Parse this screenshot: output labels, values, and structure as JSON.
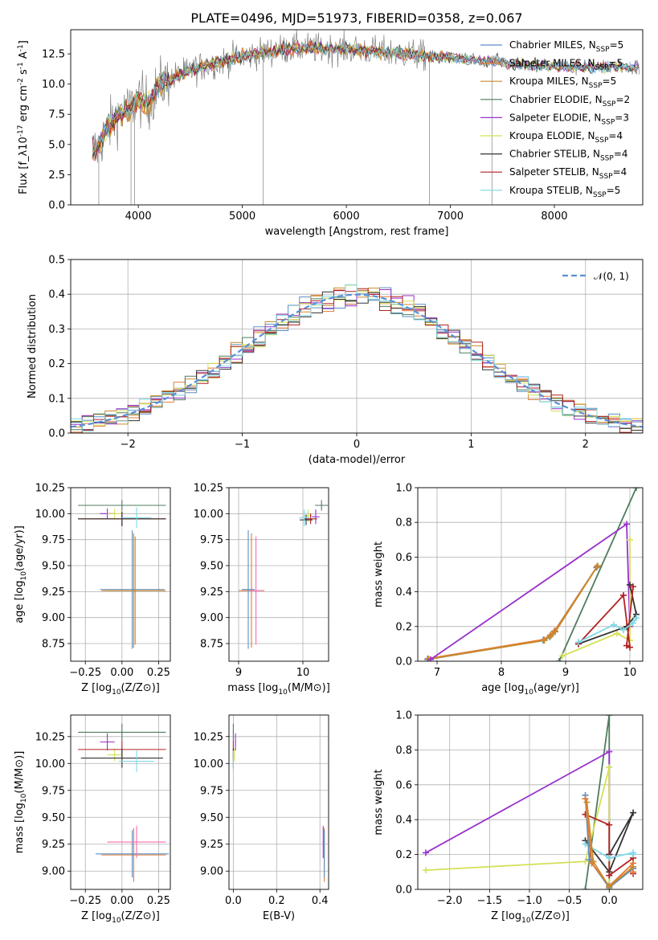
{
  "chart_data": [
    {
      "id": "spectrum",
      "type": "line",
      "title": "PLATE=0496, MJD=51973, FIBERID=0358, z=0.067",
      "xlabel": "wavelength [Angstrom, rest frame]",
      "ylabel": "Flux [f_λ10^{-17} erg cm^{-2} s^{-1} A^{-1}]",
      "xlim": [
        3350,
        8850
      ],
      "ylim": [
        0,
        14.5
      ],
      "xticks": [
        4000,
        5000,
        6000,
        7000,
        8000
      ],
      "yticks": [
        0.0,
        2.5,
        5.0,
        7.5,
        10.0,
        12.5
      ],
      "grid": false,
      "legend_placement": "right",
      "series": [
        {
          "name": "Chabrier MILES, N_SSP=5",
          "color": "#5a8fc2"
        },
        {
          "name": "Salpeter MILES, N_SSP=5",
          "color": "#e07b39"
        },
        {
          "name": "Kroupa MILES, N_SSP=5",
          "color": "#c98a2a"
        },
        {
          "name": "Chabrier ELODIE, N_SSP=2",
          "color": "#4f7c5e"
        },
        {
          "name": "Salpeter ELODIE, N_SSP=3",
          "color": "#9932cc"
        },
        {
          "name": "Kroupa ELODIE, N_SSP=4",
          "color": "#d4e157"
        },
        {
          "name": "Chabrier STELIB, N_SSP=4",
          "color": "#333333"
        },
        {
          "name": "Salpeter STELIB, N_SSP=4",
          "color": "#b22222"
        },
        {
          "name": "Kroupa STELIB, N_SSP=5",
          "color": "#7fd8e8"
        }
      ],
      "continuum": {
        "x": [
          3600,
          3700,
          3800,
          3900,
          4000,
          4100,
          4200,
          4400,
          4600,
          4800,
          5000,
          5200,
          5400,
          5600,
          5800,
          6000,
          6200,
          6400,
          6600,
          6800,
          7000,
          7200,
          7400,
          7600,
          7800,
          8000,
          8200,
          8400,
          8600
        ],
        "y": [
          4.6,
          6.2,
          7.4,
          7.8,
          8.8,
          8.4,
          9.9,
          10.8,
          11.4,
          11.9,
          12.3,
          12.6,
          12.9,
          13.0,
          12.9,
          12.9,
          12.8,
          12.6,
          12.5,
          12.3,
          12.2,
          12.0,
          11.9,
          11.7,
          11.5,
          11.5,
          11.4,
          11.4,
          11.4
        ]
      }
    },
    {
      "id": "residuals",
      "type": "histogram",
      "xlabel": "(data-model)/error",
      "ylabel": "Normed distribution",
      "xlim": [
        -2.5,
        2.5
      ],
      "ylim": [
        0,
        0.5
      ],
      "xticks": [
        -2,
        -1,
        0,
        1,
        2
      ],
      "yticks": [
        0.0,
        0.1,
        0.2,
        0.3,
        0.4,
        0.5
      ],
      "grid": true,
      "legend": [
        {
          "name": "𝒩(0, 1)",
          "color": "#5b8ed6",
          "style": "dashed"
        }
      ],
      "legend_placement": "top-right"
    },
    {
      "id": "z-age",
      "type": "errorbar",
      "xlabel": "Z [log10(Z/Z⊙)]",
      "ylabel": "age  [log10(age/yr)]",
      "xlim": [
        -0.35,
        0.33
      ],
      "ylim": [
        8.58,
        10.25
      ],
      "xticks": [
        -0.25,
        0.0,
        0.25
      ],
      "yticks": [
        8.75,
        9.0,
        9.25,
        9.5,
        9.75,
        10.0,
        10.25
      ],
      "grid": true,
      "points": [
        {
          "x": 0.0,
          "y": 10.08,
          "xerr": 0.3,
          "yerr": 0.05,
          "color": "#4f7c5e"
        },
        {
          "x": -0.1,
          "y": 10.0,
          "xerr": 0.05,
          "yerr": 0.05,
          "color": "#9932cc"
        },
        {
          "x": -0.05,
          "y": 10.0,
          "xerr": 0.05,
          "yerr": 0.05,
          "color": "#d4e157"
        },
        {
          "x": 0.0,
          "y": 9.95,
          "xerr": 0.3,
          "yerr": 0.07,
          "color": "#b22222"
        },
        {
          "x": 0.0,
          "y": 9.95,
          "xerr": 0.3,
          "yerr": 0.07,
          "color": "#333333"
        },
        {
          "x": 0.1,
          "y": 9.96,
          "xerr": 0.1,
          "yerr": 0.1,
          "color": "#7fd8e8"
        },
        {
          "x": 0.08,
          "y": 9.26,
          "xerr": 0.22,
          "yerr": 0.55,
          "color": "#e07b39"
        },
        {
          "x": 0.07,
          "y": 9.27,
          "xerr": 0.22,
          "yerr": 0.57,
          "color": "#5a8fc2"
        },
        {
          "x": 0.09,
          "y": 9.26,
          "xerr": 0.2,
          "yerr": 0.52,
          "color": "#c98a2a"
        }
      ]
    },
    {
      "id": "mass-age",
      "type": "errorbar",
      "xlabel": "mass [log10(M/M⊙)]",
      "ylabel": "",
      "xlim": [
        8.85,
        10.4
      ],
      "ylim": [
        8.58,
        10.25
      ],
      "xticks": [
        9,
        10
      ],
      "yticks": [
        8.75,
        9.0,
        9.25,
        9.5,
        9.75,
        10.0,
        10.25
      ],
      "grid": true,
      "points": [
        {
          "x": 10.29,
          "y": 10.08,
          "xerr": 0.1,
          "yerr": 0.05,
          "color": "#4f7c5e"
        },
        {
          "x": 10.2,
          "y": 9.97,
          "xerr": 0.06,
          "yerr": 0.07,
          "color": "#9932cc"
        },
        {
          "x": 10.08,
          "y": 9.98,
          "xerr": 0.06,
          "yerr": 0.06,
          "color": "#d4e157"
        },
        {
          "x": 10.12,
          "y": 9.95,
          "xerr": 0.1,
          "yerr": 0.05,
          "color": "#b22222"
        },
        {
          "x": 10.05,
          "y": 9.94,
          "xerr": 0.1,
          "yerr": 0.05,
          "color": "#333333"
        },
        {
          "x": 10.02,
          "y": 9.96,
          "xerr": 0.08,
          "yerr": 0.08,
          "color": "#7fd8e8"
        },
        {
          "x": 9.2,
          "y": 9.26,
          "xerr": 0.2,
          "yerr": 0.55,
          "color": "#e07b39"
        },
        {
          "x": 9.15,
          "y": 9.27,
          "xerr": 0.1,
          "yerr": 0.57,
          "color": "#5a8fc2"
        },
        {
          "x": 9.27,
          "y": 9.26,
          "xerr": 0.1,
          "yerr": 0.52,
          "color": "#ff69b4"
        }
      ]
    },
    {
      "id": "age-weight",
      "type": "line",
      "xlabel": "age  [log10(age/yr)]",
      "ylabel": "mass weight",
      "xlim": [
        6.7,
        10.2
      ],
      "ylim": [
        0,
        1.0
      ],
      "xticks": [
        7,
        8,
        9,
        10
      ],
      "yticks": [
        0.0,
        0.2,
        0.4,
        0.6,
        0.8,
        1.0
      ],
      "grid": true,
      "series": [
        {
          "color": "#5a8fc2",
          "x": [
            6.85,
            8.65,
            8.75,
            8.82,
            9.48
          ],
          "y": [
            0.01,
            0.12,
            0.14,
            0.17,
            0.54
          ]
        },
        {
          "color": "#e07b39",
          "x": [
            6.86,
            8.66,
            8.76,
            8.83,
            9.49
          ],
          "y": [
            0.015,
            0.125,
            0.15,
            0.175,
            0.545
          ]
        },
        {
          "color": "#c98a2a",
          "x": [
            6.87,
            8.67,
            8.77,
            8.84,
            9.5
          ],
          "y": [
            0.012,
            0.12,
            0.145,
            0.17,
            0.55
          ]
        },
        {
          "color": "#4f7c5e",
          "x": [
            8.9,
            10.1
          ],
          "y": [
            0.0,
            1.0
          ]
        },
        {
          "color": "#9932cc",
          "x": [
            6.9,
            9.95,
            10.0
          ],
          "y": [
            0.01,
            0.79,
            0.2
          ]
        },
        {
          "color": "#d4e157",
          "x": [
            8.95,
            9.8,
            10.0,
            10.0
          ],
          "y": [
            0.03,
            0.16,
            0.12,
            0.7
          ]
        },
        {
          "color": "#333333",
          "x": [
            9.2,
            9.95,
            10.1,
            10.0
          ],
          "y": [
            0.1,
            0.2,
            0.27,
            0.44
          ]
        },
        {
          "color": "#b22222",
          "x": [
            9.2,
            9.9,
            10.0,
            9.95,
            10.05
          ],
          "y": [
            0.1,
            0.38,
            0.08,
            0.09,
            0.43
          ]
        },
        {
          "color": "#7fd8e8",
          "x": [
            9.2,
            9.75,
            9.9,
            10.05,
            10.1
          ],
          "y": [
            0.11,
            0.21,
            0.18,
            0.22,
            0.25
          ]
        }
      ]
    },
    {
      "id": "z-mass",
      "type": "errorbar",
      "xlabel": "Z [log10(Z/Z⊙)]",
      "ylabel": "mass [log10(M/M⊙)]",
      "xlim": [
        -0.35,
        0.33
      ],
      "ylim": [
        8.83,
        10.45
      ],
      "xticks": [
        -0.25,
        0.0,
        0.25
      ],
      "yticks": [
        9.0,
        9.25,
        9.5,
        9.75,
        10.0,
        10.25
      ],
      "grid": true,
      "points": [
        {
          "x": 0.0,
          "y": 10.29,
          "xerr": 0.3,
          "yerr": 0.08,
          "color": "#4f7c5e"
        },
        {
          "x": -0.1,
          "y": 10.2,
          "xerr": 0.05,
          "yerr": 0.08,
          "color": "#9932cc"
        },
        {
          "x": -0.05,
          "y": 10.08,
          "xerr": 0.05,
          "yerr": 0.06,
          "color": "#d4e157"
        },
        {
          "x": 0.0,
          "y": 10.13,
          "xerr": 0.3,
          "yerr": 0.08,
          "color": "#b22222"
        },
        {
          "x": 0.0,
          "y": 10.05,
          "xerr": 0.28,
          "yerr": 0.09,
          "color": "#333333"
        },
        {
          "x": 0.1,
          "y": 10.02,
          "xerr": 0.12,
          "yerr": 0.1,
          "color": "#7fd8e8"
        },
        {
          "x": 0.08,
          "y": 9.15,
          "xerr": 0.22,
          "yerr": 0.25,
          "color": "#e07b39"
        },
        {
          "x": 0.07,
          "y": 9.16,
          "xerr": 0.25,
          "yerr": 0.22,
          "color": "#5a8fc2"
        },
        {
          "x": 0.1,
          "y": 9.27,
          "xerr": 0.2,
          "yerr": 0.15,
          "color": "#ff69b4"
        }
      ]
    },
    {
      "id": "ebv-mass",
      "type": "errorbar",
      "xlabel": "E(B-V)",
      "ylabel": "",
      "xlim": [
        -0.02,
        0.44
      ],
      "ylim": [
        8.83,
        10.45
      ],
      "xticks": [
        0.0,
        0.2,
        0.4
      ],
      "yticks": [
        9.0,
        9.25,
        9.5,
        9.75,
        10.0,
        10.25
      ],
      "grid": true,
      "points": [
        {
          "x": 0.0,
          "y": 10.29,
          "xerr": 0.002,
          "yerr": 0.08,
          "color": "#4f7c5e"
        },
        {
          "x": 0.01,
          "y": 10.2,
          "xerr": 0.002,
          "yerr": 0.08,
          "color": "#9932cc"
        },
        {
          "x": 0.005,
          "y": 10.08,
          "xerr": 0.002,
          "yerr": 0.06,
          "color": "#d4e157"
        },
        {
          "x": 0.0,
          "y": 10.13,
          "xerr": 0.002,
          "yerr": 0.08,
          "color": "#b22222"
        },
        {
          "x": 0.0,
          "y": 10.05,
          "xerr": 0.002,
          "yerr": 0.09,
          "color": "#333333"
        },
        {
          "x": 0.0,
          "y": 10.02,
          "xerr": 0.002,
          "yerr": 0.1,
          "color": "#7fd8e8"
        },
        {
          "x": 0.42,
          "y": 9.15,
          "xerr": 0.002,
          "yerr": 0.25,
          "color": "#e07b39"
        },
        {
          "x": 0.42,
          "y": 9.16,
          "xerr": 0.002,
          "yerr": 0.22,
          "color": "#5a8fc2"
        },
        {
          "x": 0.415,
          "y": 9.27,
          "xerr": 0.002,
          "yerr": 0.15,
          "color": "#9932cc"
        }
      ]
    },
    {
      "id": "z-weight",
      "type": "line",
      "xlabel": "Z [log10(Z/Z⊙)]",
      "ylabel": "mass weight",
      "xlim": [
        -2.4,
        0.42
      ],
      "ylim": [
        0,
        1.0
      ],
      "xticks": [
        -2.0,
        -1.5,
        -1.0,
        -0.5,
        0.0
      ],
      "yticks": [
        0.0,
        0.2,
        0.4,
        0.6,
        0.8,
        1.0
      ],
      "grid": true,
      "series": [
        {
          "color": "#4f7c5e",
          "x": [
            -0.3,
            0.0,
            0.0
          ],
          "y": [
            0.0,
            1.0,
            0.0
          ]
        },
        {
          "color": "#9932cc",
          "x": [
            -2.3,
            0.0,
            0.0
          ],
          "y": [
            0.21,
            0.79,
            0.2
          ]
        },
        {
          "color": "#d4e157",
          "x": [
            -2.3,
            -0.3,
            0.0,
            0.0
          ],
          "y": [
            0.11,
            0.16,
            0.7,
            0.0
          ]
        },
        {
          "color": "#333333",
          "x": [
            -0.3,
            0.0,
            0.3,
            0.0
          ],
          "y": [
            0.28,
            0.1,
            0.44,
            0.2
          ]
        },
        {
          "color": "#b22222",
          "x": [
            -0.3,
            0.0,
            0.0,
            0.3,
            0.3
          ],
          "y": [
            0.43,
            0.37,
            0.08,
            0.18,
            0.09
          ]
        },
        {
          "color": "#7fd8e8",
          "x": [
            -0.3,
            0.0,
            0.3,
            0.3
          ],
          "y": [
            0.26,
            0.18,
            0.21,
            0.2
          ]
        },
        {
          "color": "#5a8fc2",
          "x": [
            -0.3,
            -0.25,
            0.0,
            0.3
          ],
          "y": [
            0.54,
            0.17,
            0.01,
            0.12
          ]
        },
        {
          "color": "#e07b39",
          "x": [
            -0.3,
            -0.22,
            0.0,
            0.3,
            0.3
          ],
          "y": [
            0.52,
            0.15,
            0.02,
            0.15,
            0.1
          ]
        },
        {
          "color": "#c98a2a",
          "x": [
            -0.28,
            -0.2,
            0.0,
            0.3
          ],
          "y": [
            0.5,
            0.16,
            0.015,
            0.13
          ]
        }
      ]
    }
  ]
}
